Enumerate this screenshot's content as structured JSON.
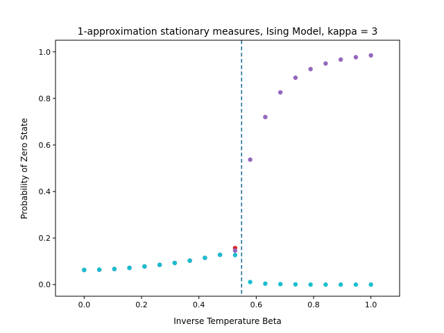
{
  "chart_data": {
    "type": "scatter",
    "title": "1-approximation stationary measures, Ising Model, kappa = 3",
    "xlabel": "Inverse Temperature Beta",
    "ylabel": "Probability of Zero State",
    "xlim": [
      -0.1,
      1.1
    ],
    "ylim": [
      -0.05,
      1.05
    ],
    "xticks": [
      0.0,
      0.2,
      0.4,
      0.6,
      0.8,
      1.0
    ],
    "xtick_labels": [
      "0.0",
      "0.2",
      "0.4",
      "0.6",
      "0.8",
      "1.0"
    ],
    "yticks": [
      0.0,
      0.2,
      0.4,
      0.6,
      0.8,
      1.0
    ],
    "ytick_labels": [
      "0.0",
      "0.2",
      "0.4",
      "0.6",
      "0.8",
      "1.0"
    ],
    "grid": false,
    "vline": {
      "x": 0.549,
      "style": "dashed",
      "color": "#1f6e9e"
    },
    "series": [
      {
        "color": "#d62728",
        "x": [
          0.0,
          0.0526,
          0.1053,
          0.1579,
          0.2105,
          0.2632,
          0.3158,
          0.3684,
          0.4211,
          0.4737,
          0.5263
        ],
        "y": [
          0.063,
          0.064,
          0.067,
          0.072,
          0.078,
          0.085,
          0.093,
          0.103,
          0.115,
          0.128,
          0.157
        ]
      },
      {
        "color": "#9467bd",
        "x": [
          0.0,
          0.0526,
          0.1053,
          0.1579,
          0.2105,
          0.2632,
          0.3158,
          0.3684,
          0.4211,
          0.4737,
          0.5263,
          0.5789,
          0.6316,
          0.6842,
          0.7368,
          0.7895,
          0.8421,
          0.8947,
          0.9474,
          1.0
        ],
        "y": [
          0.063,
          0.064,
          0.067,
          0.072,
          0.078,
          0.085,
          0.093,
          0.103,
          0.115,
          0.128,
          0.146,
          0.537,
          0.72,
          0.826,
          0.889,
          0.926,
          0.95,
          0.967,
          0.977,
          0.985
        ]
      },
      {
        "color": "#17becf",
        "x": [
          0.0,
          0.0526,
          0.1053,
          0.1579,
          0.2105,
          0.2632,
          0.3158,
          0.3684,
          0.4211,
          0.4737,
          0.5263,
          0.5789,
          0.6316,
          0.6842,
          0.7368,
          0.7895,
          0.8421,
          0.8947,
          0.9474,
          1.0
        ],
        "y": [
          0.063,
          0.064,
          0.067,
          0.072,
          0.078,
          0.085,
          0.093,
          0.103,
          0.115,
          0.128,
          0.127,
          0.011,
          0.004,
          0.002,
          0.001,
          0.0,
          0.0,
          0.0,
          0.0,
          0.0
        ]
      }
    ]
  }
}
